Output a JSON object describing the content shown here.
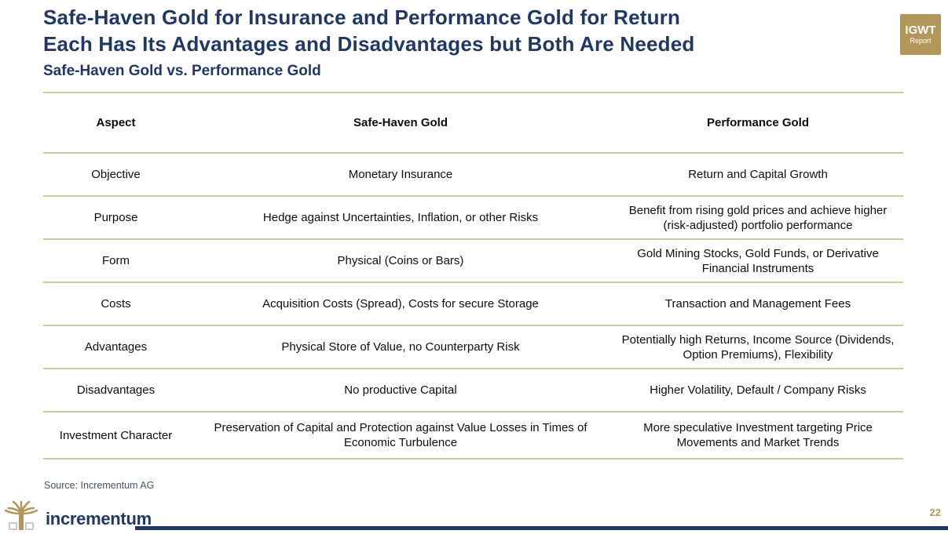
{
  "header": {
    "title_line1": "Safe-Haven Gold for Insurance and Performance Gold for Return",
    "title_line2": "Each Has Its Advantages and Disadvantages but Both Are Needed",
    "subtitle": "Safe-Haven Gold vs. Performance Gold",
    "badge": {
      "line1": "IGWT",
      "line2": "Report"
    }
  },
  "table": {
    "columns": [
      "Aspect",
      "Safe-Haven Gold",
      "Performance Gold"
    ],
    "rows": [
      {
        "aspect": "Objective",
        "safe_haven": "Monetary Insurance",
        "performance": "Return and Capital Growth"
      },
      {
        "aspect": "Purpose",
        "safe_haven": "Hedge against Uncertainties, Inflation, or other Risks",
        "performance": "Benefit from rising gold prices and achieve higher (risk-adjusted) portfolio performance"
      },
      {
        "aspect": "Form",
        "safe_haven": "Physical (Coins or Bars)",
        "performance": "Gold Mining Stocks, Gold Funds, or Derivative Financial Instruments"
      },
      {
        "aspect": "Costs",
        "safe_haven": "Acquisition Costs (Spread), Costs for secure Storage",
        "performance": "Transaction and Management Fees"
      },
      {
        "aspect": "Advantages",
        "safe_haven": "Physical Store of Value, no Counterparty Risk",
        "performance": "Potentially high Returns, Income Source (Dividends, Option Premiums), Flexibility"
      },
      {
        "aspect": "Disadvantages",
        "safe_haven": "No productive Capital",
        "performance": "Higher Volatility, Default / Company Risks"
      },
      {
        "aspect": "Investment Character",
        "safe_haven": "Preservation of Capital and Protection against Value Losses in Times of Economic Turbulence",
        "performance": "More speculative Investment targeting Price Movements and Market Trends"
      }
    ]
  },
  "footer": {
    "source": "Source: Incrementum AG",
    "logo_text": "incrementum",
    "page_number": "22"
  },
  "colors": {
    "title_navy": "#1F3864",
    "rule_gold": "#D5C79C",
    "accent_gold": "#B3975A",
    "footer_navy": "#1F3864"
  }
}
